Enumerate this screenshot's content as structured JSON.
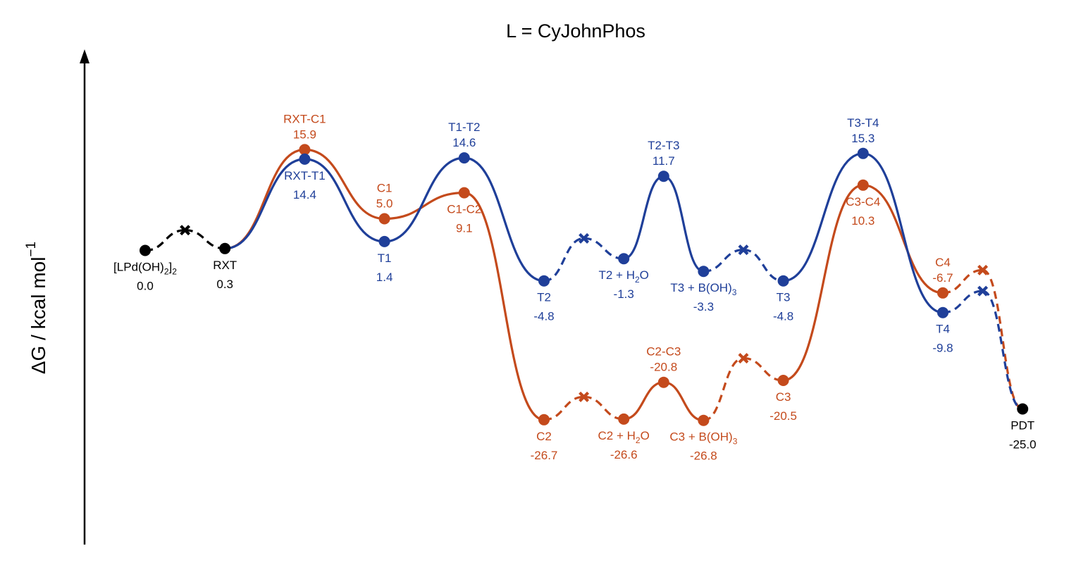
{
  "chart_data": {
    "type": "line",
    "title": "L = CyJohnPhos",
    "ylabel": "ΔG / kcal mol",
    "ylabel_superscript": "−1",
    "colors": {
      "shared": "#000000",
      "blue": "#1f3f99",
      "orange": "#c44a1c"
    },
    "ylim": [
      -35,
      22
    ],
    "grid": false,
    "legend": "none",
    "shared_path": [
      {
        "id": "LPdOH2",
        "x": 0,
        "y": 0.0,
        "marker": "circle"
      },
      {
        "id": "x0",
        "x": 0.5,
        "y": 3.2,
        "marker": "cross"
      },
      {
        "id": "RXT",
        "x": 1,
        "y": 0.3,
        "marker": "circle"
      }
    ],
    "series": [
      {
        "name": "blue",
        "color": "#1f3f99",
        "points": [
          {
            "id": "RXT",
            "x": 1,
            "y": 0.3,
            "marker": "none",
            "seg": "solid"
          },
          {
            "id": "RXT-T1",
            "x": 2,
            "y": 14.4,
            "marker": "circle",
            "seg": "solid"
          },
          {
            "id": "T1",
            "x": 3,
            "y": 1.4,
            "marker": "circle",
            "seg": "solid"
          },
          {
            "id": "T1-T2",
            "x": 4,
            "y": 14.6,
            "marker": "circle",
            "seg": "solid"
          },
          {
            "id": "T2",
            "x": 5,
            "y": -4.8,
            "marker": "circle",
            "seg": "solid"
          },
          {
            "id": "xb1",
            "x": 5.5,
            "y": 1.9,
            "marker": "cross",
            "seg": "dash"
          },
          {
            "id": "T2+H2O",
            "x": 6,
            "y": -1.3,
            "marker": "circle",
            "seg": "dash"
          },
          {
            "id": "T2-T3",
            "x": 6.5,
            "y": 11.7,
            "marker": "circle",
            "seg": "solid"
          },
          {
            "id": "T3+BOH3",
            "x": 7,
            "y": -3.3,
            "marker": "circle",
            "seg": "solid"
          },
          {
            "id": "xb2",
            "x": 7.5,
            "y": 0.1,
            "marker": "cross",
            "seg": "dash"
          },
          {
            "id": "T3",
            "x": 8,
            "y": -4.8,
            "marker": "circle",
            "seg": "dash"
          },
          {
            "id": "T3-T4",
            "x": 9,
            "y": 15.3,
            "marker": "circle",
            "seg": "solid"
          },
          {
            "id": "T4",
            "x": 10,
            "y": -9.8,
            "marker": "circle",
            "seg": "solid"
          },
          {
            "id": "xb3",
            "x": 10.5,
            "y": -6.4,
            "marker": "cross",
            "seg": "dash"
          },
          {
            "id": "PDT",
            "x": 11,
            "y": -25.0,
            "marker": "none",
            "seg": "dash"
          }
        ]
      },
      {
        "name": "orange",
        "color": "#c44a1c",
        "points": [
          {
            "id": "RXT",
            "x": 1,
            "y": 0.3,
            "marker": "none",
            "seg": "solid"
          },
          {
            "id": "RXT-C1",
            "x": 2,
            "y": 15.9,
            "marker": "circle",
            "seg": "solid"
          },
          {
            "id": "C1",
            "x": 3,
            "y": 5.0,
            "marker": "circle",
            "seg": "solid"
          },
          {
            "id": "C1-C2",
            "x": 4,
            "y": 9.1,
            "marker": "circle",
            "seg": "solid"
          },
          {
            "id": "C2",
            "x": 5,
            "y": -26.7,
            "marker": "circle",
            "seg": "solid"
          },
          {
            "id": "xo1",
            "x": 5.5,
            "y": -23.1,
            "marker": "cross",
            "seg": "dash"
          },
          {
            "id": "C2+H2O",
            "x": 6,
            "y": -26.6,
            "marker": "circle",
            "seg": "dash"
          },
          {
            "id": "C2-C3",
            "x": 6.5,
            "y": -20.8,
            "marker": "circle",
            "seg": "solid"
          },
          {
            "id": "C3+BOH3",
            "x": 7,
            "y": -26.8,
            "marker": "circle",
            "seg": "solid"
          },
          {
            "id": "xo2",
            "x": 7.5,
            "y": -17.0,
            "marker": "cross",
            "seg": "dash"
          },
          {
            "id": "C3",
            "x": 8,
            "y": -20.5,
            "marker": "circle",
            "seg": "dash"
          },
          {
            "id": "C3-C4",
            "x": 9,
            "y": 10.3,
            "marker": "circle",
            "seg": "solid"
          },
          {
            "id": "C4",
            "x": 10,
            "y": -6.7,
            "marker": "circle",
            "seg": "solid"
          },
          {
            "id": "xo3",
            "x": 10.5,
            "y": -3.1,
            "marker": "cross",
            "seg": "dash"
          },
          {
            "id": "PDT",
            "x": 11,
            "y": -25.0,
            "marker": "none",
            "seg": "dash"
          }
        ]
      }
    ],
    "end_point": {
      "id": "PDT",
      "x": 11,
      "y": -25.0,
      "marker": "circle"
    },
    "labels": [
      {
        "id": "lbl-lpdoh2",
        "parts": [
          [
            "[LPd(OH)",
            ""
          ],
          [
            "2",
            "sub"
          ],
          [
            "]",
            ""
          ],
          [
            "2",
            "sub"
          ]
        ],
        "value": "0.0",
        "color": "black",
        "x": 0,
        "y": 0.0,
        "pos": "below"
      },
      {
        "id": "lbl-rxt",
        "name": "RXT",
        "value": "0.3",
        "color": "black",
        "x": 1,
        "y": 0.3,
        "pos": "below"
      },
      {
        "id": "lbl-rxt-c1",
        "name": "RXT-C1",
        "value": "15.9",
        "color": "orange",
        "x": 2,
        "y": 15.9,
        "pos": "above"
      },
      {
        "id": "lbl-rxt-t1",
        "name": "RXT-T1",
        "value": "14.4",
        "color": "blue",
        "x": 2,
        "y": 14.4,
        "pos": "below"
      },
      {
        "id": "lbl-c1",
        "name": "C1",
        "value": "5.0",
        "color": "orange",
        "x": 3,
        "y": 5.0,
        "pos": "above"
      },
      {
        "id": "lbl-t1",
        "name": "T1",
        "value": "1.4",
        "color": "blue",
        "x": 3,
        "y": 1.4,
        "pos": "below"
      },
      {
        "id": "lbl-t1-t2",
        "name": "T1-T2",
        "value": "14.6",
        "color": "blue",
        "x": 4,
        "y": 14.6,
        "pos": "above"
      },
      {
        "id": "lbl-c1-c2",
        "name": "C1-C2",
        "value": "9.1",
        "color": "orange",
        "x": 4,
        "y": 9.1,
        "pos": "below"
      },
      {
        "id": "lbl-t2",
        "name": "T2",
        "value": "-4.8",
        "color": "blue",
        "x": 5,
        "y": -4.8,
        "pos": "below"
      },
      {
        "id": "lbl-t2-h2o",
        "parts": [
          [
            "T2 + H",
            ""
          ],
          [
            "2",
            "sub"
          ],
          [
            "O",
            ""
          ]
        ],
        "value": "-1.3",
        "color": "blue",
        "x": 6,
        "y": -1.3,
        "pos": "below"
      },
      {
        "id": "lbl-t2-t3",
        "name": "T2-T3",
        "value": "11.7",
        "color": "blue",
        "x": 6.5,
        "y": 11.7,
        "pos": "above"
      },
      {
        "id": "lbl-t3-boh3",
        "parts": [
          [
            "T3 + B(OH)",
            ""
          ],
          [
            "3",
            "sub"
          ]
        ],
        "value": "-3.3",
        "color": "blue",
        "x": 7,
        "y": -3.3,
        "pos": "below"
      },
      {
        "id": "lbl-t3",
        "name": "T3",
        "value": "-4.8",
        "color": "blue",
        "x": 8,
        "y": -4.8,
        "pos": "below"
      },
      {
        "id": "lbl-t3-t4",
        "name": "T3-T4",
        "value": "15.3",
        "color": "blue",
        "x": 9,
        "y": 15.3,
        "pos": "above"
      },
      {
        "id": "lbl-c3-c4",
        "name": "C3-C4",
        "value": "10.3",
        "color": "orange",
        "x": 9,
        "y": 10.3,
        "pos": "below"
      },
      {
        "id": "lbl-c4",
        "name": "C4",
        "value": "-6.7",
        "color": "orange",
        "x": 10,
        "y": -6.7,
        "pos": "above"
      },
      {
        "id": "lbl-t4",
        "name": "T4",
        "value": "-9.8",
        "color": "blue",
        "x": 10,
        "y": -9.8,
        "pos": "below"
      },
      {
        "id": "lbl-c2",
        "name": "C2",
        "value": "-26.7",
        "color": "orange",
        "x": 5,
        "y": -26.7,
        "pos": "below"
      },
      {
        "id": "lbl-c2-h2o",
        "parts": [
          [
            "C2 + H",
            ""
          ],
          [
            "2",
            "sub"
          ],
          [
            "O",
            ""
          ]
        ],
        "value": "-26.6",
        "color": "orange",
        "x": 6,
        "y": -26.6,
        "pos": "below"
      },
      {
        "id": "lbl-c2-c3",
        "name": "C2-C3",
        "value": "-20.8",
        "color": "orange",
        "x": 6.5,
        "y": -20.8,
        "pos": "above"
      },
      {
        "id": "lbl-c3-boh3",
        "parts": [
          [
            "C3 + B(OH)",
            ""
          ],
          [
            "3",
            "sub"
          ]
        ],
        "value": "-26.8",
        "color": "orange",
        "x": 7,
        "y": -26.8,
        "pos": "below"
      },
      {
        "id": "lbl-c3",
        "name": "C3",
        "value": "-20.5",
        "color": "orange",
        "x": 8,
        "y": -20.5,
        "pos": "below"
      },
      {
        "id": "lbl-pdt",
        "name": "PDT",
        "value": "-25.0",
        "color": "black",
        "x": 11,
        "y": -25.0,
        "pos": "below"
      }
    ]
  }
}
